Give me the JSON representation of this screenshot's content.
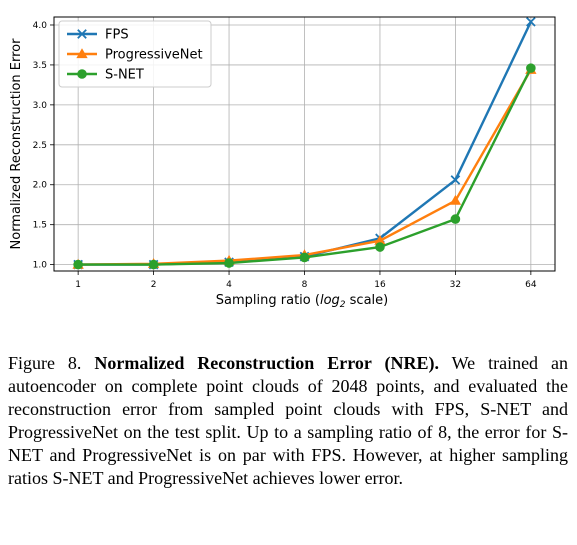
{
  "chart_data": {
    "type": "line",
    "x_scale": "log2",
    "categories": [
      "1",
      "2",
      "4",
      "8",
      "16",
      "32",
      "64"
    ],
    "x": [
      1,
      2,
      4,
      8,
      16,
      32,
      64
    ],
    "ylabel": "Normalized Reconstruction Error",
    "xlabel_prefix": "Sampling ratio (",
    "xlabel_log": "log",
    "xlabel_sub": "2",
    "xlabel_suffix": " scale)",
    "ylim": [
      0.92,
      4.1
    ],
    "yticks": [
      "1.0",
      "1.5",
      "2.0",
      "2.5",
      "3.0",
      "3.5",
      "4.0"
    ],
    "grid": true,
    "legend_position": "top-left",
    "series": [
      {
        "name": "FPS",
        "color": "#1f77b4",
        "marker": "x",
        "values": [
          1.0,
          1.0,
          1.03,
          1.1,
          1.33,
          2.06,
          4.04
        ]
      },
      {
        "name": "ProgressiveNet",
        "color": "#ff7f0e",
        "marker": "triangle",
        "values": [
          1.0,
          1.01,
          1.05,
          1.12,
          1.3,
          1.8,
          3.44
        ]
      },
      {
        "name": "S-NET",
        "color": "#2ca02c",
        "marker": "circle",
        "values": [
          1.0,
          1.0,
          1.02,
          1.09,
          1.22,
          1.57,
          3.46
        ]
      }
    ]
  },
  "caption": {
    "figure_number": "Figure 8.",
    "title": "Normalized Reconstruction Error (NRE).",
    "body": "We trained an autoencoder on complete point clouds of 2048 points, and evaluated the reconstruction error from sampled point clouds with FPS, S-NET and ProgressiveNet on the test split. Up to a sampling ratio of 8, the error for S-NET and ProgressiveNet is on par with FPS. However, at higher sampling ratios S-NET and ProgressiveNet achieves lower error."
  }
}
